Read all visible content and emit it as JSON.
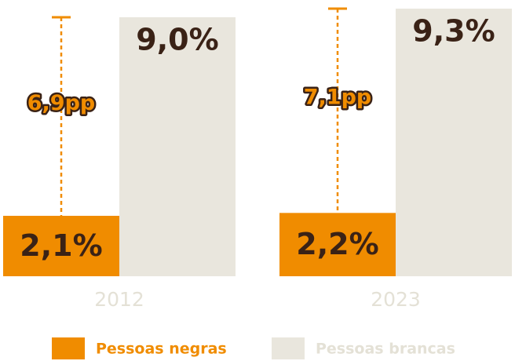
{
  "chart_data": {
    "type": "bar",
    "categories": [
      "2012",
      "2023"
    ],
    "ylim": [
      0,
      9.6
    ],
    "series": [
      {
        "name": "Pessoas negras",
        "values": [
          2.1,
          2.2
        ],
        "labels": [
          "2,1%",
          "2,2%"
        ],
        "color": "#f08c00"
      },
      {
        "name": "Pessoas brancas",
        "values": [
          9.0,
          9.3
        ],
        "labels": [
          "9,0%",
          "9,3%"
        ],
        "color": "#e9e6dd"
      }
    ],
    "gaps": [
      {
        "category": "2012",
        "value": 6.9,
        "label": "6,9pp"
      },
      {
        "category": "2023",
        "value": 7.1,
        "label": "7,1pp"
      }
    ],
    "grid": false,
    "legend_position": "bottom"
  },
  "colors": {
    "accent_orange": "#f08c00",
    "light_beige": "#e9e6dd",
    "value_text": "#3a2216",
    "year_text": "#e4e1d6",
    "legend_brancas_text": "#e4e1d6"
  }
}
